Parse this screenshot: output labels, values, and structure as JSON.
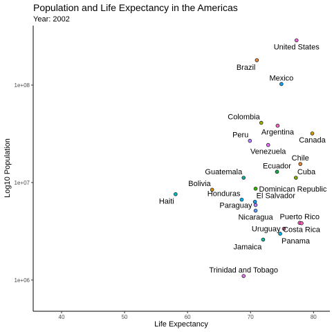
{
  "chart_data": {
    "type": "scatter",
    "title": "Population and Life Expectancy in the Americas",
    "subtitle": "Year: 2002",
    "xlabel": "Life Expectancy",
    "ylabel": "Log10 Population",
    "xlim": [
      35.5,
      82.6
    ],
    "ylim_log10": [
      5.68,
      8.61
    ],
    "y_scale": "log10",
    "x_ticks": [
      {
        "value": 40,
        "label": "40"
      },
      {
        "value": 50,
        "label": "50"
      },
      {
        "value": 60,
        "label": "60"
      },
      {
        "value": 70,
        "label": "70"
      },
      {
        "value": 80,
        "label": "80"
      }
    ],
    "y_ticks": [
      {
        "value": 1000000,
        "label": "1e+06"
      },
      {
        "value": 10000000,
        "label": "1e+07"
      },
      {
        "value": 100000000,
        "label": "1e+08"
      }
    ],
    "grid": false,
    "legend": "none",
    "points": [
      {
        "label": "United States",
        "x": 77.3,
        "y": 287700000,
        "color": "#F564E3",
        "label_pos": "below"
      },
      {
        "label": "Brazil",
        "x": 71.0,
        "y": 179900000,
        "color": "#E6863B",
        "label_pos": "below-left"
      },
      {
        "label": "Mexico",
        "x": 74.9,
        "y": 102500000,
        "color": "#00A9FF",
        "label_pos": "above"
      },
      {
        "label": "Colombia",
        "x": 71.7,
        "y": 41000000,
        "color": "#9FB000",
        "label_pos": "above-left"
      },
      {
        "label": "Argentina",
        "x": 74.3,
        "y": 38300000,
        "color": "#F766C0",
        "label_pos": "below"
      },
      {
        "label": "Canada",
        "x": 79.8,
        "y": 31900000,
        "color": "#D1A000",
        "label_pos": "below"
      },
      {
        "label": "Peru",
        "x": 69.9,
        "y": 26800000,
        "color": "#B983FF",
        "label_pos": "above-left"
      },
      {
        "label": "Venezuela",
        "x": 72.8,
        "y": 24300000,
        "color": "#E76BF3",
        "label_pos": "below"
      },
      {
        "label": "Chile",
        "x": 77.9,
        "y": 15500000,
        "color": "#E88526",
        "label_pos": "above"
      },
      {
        "label": "Ecuador",
        "x": 74.2,
        "y": 12900000,
        "color": "#00BA38",
        "label_pos": "above"
      },
      {
        "label": "Cuba",
        "x": 77.2,
        "y": 11200000,
        "color": "#7CAE00",
        "label_pos": "above-right"
      },
      {
        "label": "Guatemala",
        "x": 68.9,
        "y": 11200000,
        "color": "#00B0A0",
        "label_pos": "above-left"
      },
      {
        "label": "Dominican Republic",
        "x": 70.8,
        "y": 8650000,
        "color": "#39B600",
        "label_pos": "right"
      },
      {
        "label": "Bolivia",
        "x": 63.9,
        "y": 8450000,
        "color": "#D89000",
        "label_pos": "above-left"
      },
      {
        "label": "Haiti",
        "x": 58.1,
        "y": 7600000,
        "color": "#00BFC4",
        "label_pos": "below-left"
      },
      {
        "label": "Honduras",
        "x": 68.6,
        "y": 6680000,
        "color": "#00B4EF",
        "label_pos": "above-left"
      },
      {
        "label": "El Salvador",
        "x": 70.7,
        "y": 6350000,
        "color": "#00A5FF",
        "label_pos": "above-right"
      },
      {
        "label": "Paraguay",
        "x": 70.8,
        "y": 5880000,
        "color": "#B385FF",
        "label_pos": "left"
      },
      {
        "label": "Nicaragua",
        "x": 70.8,
        "y": 5150000,
        "color": "#619CFF",
        "label_pos": "below"
      },
      {
        "label": "Puerto Rico",
        "x": 77.8,
        "y": 3860000,
        "color": "#FF61C3",
        "label_pos": "above"
      },
      {
        "label": "Costa Rica",
        "x": 78.1,
        "y": 3830000,
        "color": "#FF62BC",
        "label_pos": "below"
      },
      {
        "label": "Uruguay",
        "x": 75.3,
        "y": 3360000,
        "color": "#FF64B0",
        "label_pos": "left"
      },
      {
        "label": "Panama",
        "x": 74.7,
        "y": 2990000,
        "color": "#00B8E7",
        "label_pos": "below-right"
      },
      {
        "label": "Jamaica",
        "x": 72.0,
        "y": 2600000,
        "color": "#00C1A3",
        "label_pos": "below-left"
      },
      {
        "label": "Trinidad and Tobago",
        "x": 68.9,
        "y": 1100000,
        "color": "#E76BF3",
        "label_pos": "above"
      }
    ]
  }
}
